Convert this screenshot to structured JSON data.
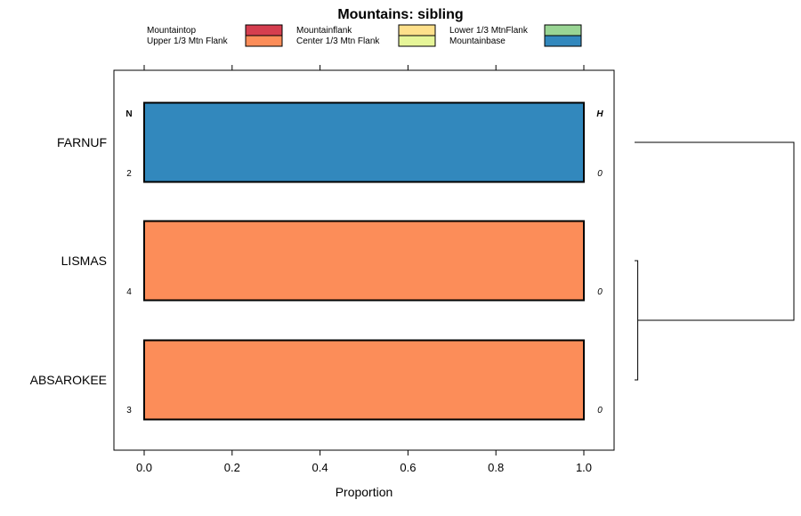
{
  "chart_data": {
    "type": "bar",
    "title": "Mountains: sibling",
    "xlabel": "Proportion",
    "ylabel": "",
    "xlim": [
      -0.07,
      1.07
    ],
    "x_ticks": [
      0.0,
      0.2,
      0.4,
      0.6,
      0.8,
      1.0
    ],
    "x_tick_labels": [
      "0.0",
      "0.2",
      "0.4",
      "0.6",
      "0.8",
      "1.0"
    ],
    "categories": [
      "FARNUF",
      "LISMAS",
      "ABSAROKEE"
    ],
    "stacked": true,
    "series": [
      {
        "name": "Mountaintop",
        "color": "#d53e4f",
        "values": [
          0,
          0,
          0
        ]
      },
      {
        "name": "Upper 1/3 Mtn Flank",
        "color": "#fc8d59",
        "values": [
          0,
          1,
          1
        ]
      },
      {
        "name": "Mountainflank",
        "color": "#fee08b",
        "values": [
          0,
          0,
          0
        ]
      },
      {
        "name": "Center 1/3 Mtn Flank",
        "color": "#e6f598",
        "values": [
          0,
          0,
          0
        ]
      },
      {
        "name": "Lower 1/3 MtnFlank",
        "color": "#99d594",
        "values": [
          0,
          0,
          0
        ]
      },
      {
        "name": "Mountainbase",
        "color": "#3288bd",
        "values": [
          1,
          0,
          0
        ]
      }
    ],
    "n_header": "N",
    "h_header": "H",
    "n_values": [
      "2",
      "4",
      "3"
    ],
    "h_values": [
      "0",
      "0",
      "0"
    ],
    "legend_position": "top",
    "grid": false,
    "dendrogram": {
      "merges": [
        {
          "left": "LISMAS",
          "right": "ABSAROKEE",
          "height": 0.02
        },
        {
          "left": "FARNUF",
          "right": "LISMAS+ABSAROKEE",
          "height": 1.0
        }
      ]
    }
  }
}
